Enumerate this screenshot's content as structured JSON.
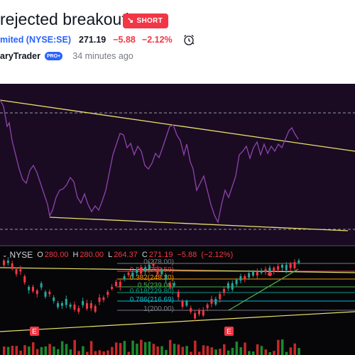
{
  "idea": {
    "title": "rejected breakout)",
    "badge_label": "SHORT",
    "symbol": "mited (NYSE:SE)",
    "price": "271.19",
    "change": "−5.88",
    "change_pct": "−2.12%",
    "author": "aryTrader",
    "pro_label": "PRO+",
    "time_ago": "34 minutes ago"
  },
  "legend": {
    "symbol": "NYSE",
    "open_label": "O",
    "open": "280.00",
    "high_label": "H",
    "high": "280.00",
    "low_label": "L",
    "low": "264.37",
    "close_label": "C",
    "close": "271.19",
    "change": "−5.88",
    "change_pct": "(−2.12%)"
  },
  "fib_levels": [
    {
      "label": "0(278.00)",
      "color": "#787b86"
    },
    {
      "label": "0.236(259.59)",
      "color": "#f23645"
    },
    {
      "label": "0.382(248.20)",
      "color": "#ff9800"
    },
    {
      "label": "0.5(239.00)",
      "color": "#4caf50"
    },
    {
      "label": "0.618(229.80)",
      "color": "#089981"
    },
    {
      "label": "0.786(216.69)",
      "color": "#00bcd4"
    },
    {
      "label": "1(200.00)",
      "color": "#787b86"
    }
  ],
  "earnings_marker": "E",
  "colors": {
    "up": "#26a69a",
    "down": "#f23645",
    "oscillator_line": "#8e44ad",
    "trendline": "#e9e06b",
    "accent": "#2962ff"
  }
}
